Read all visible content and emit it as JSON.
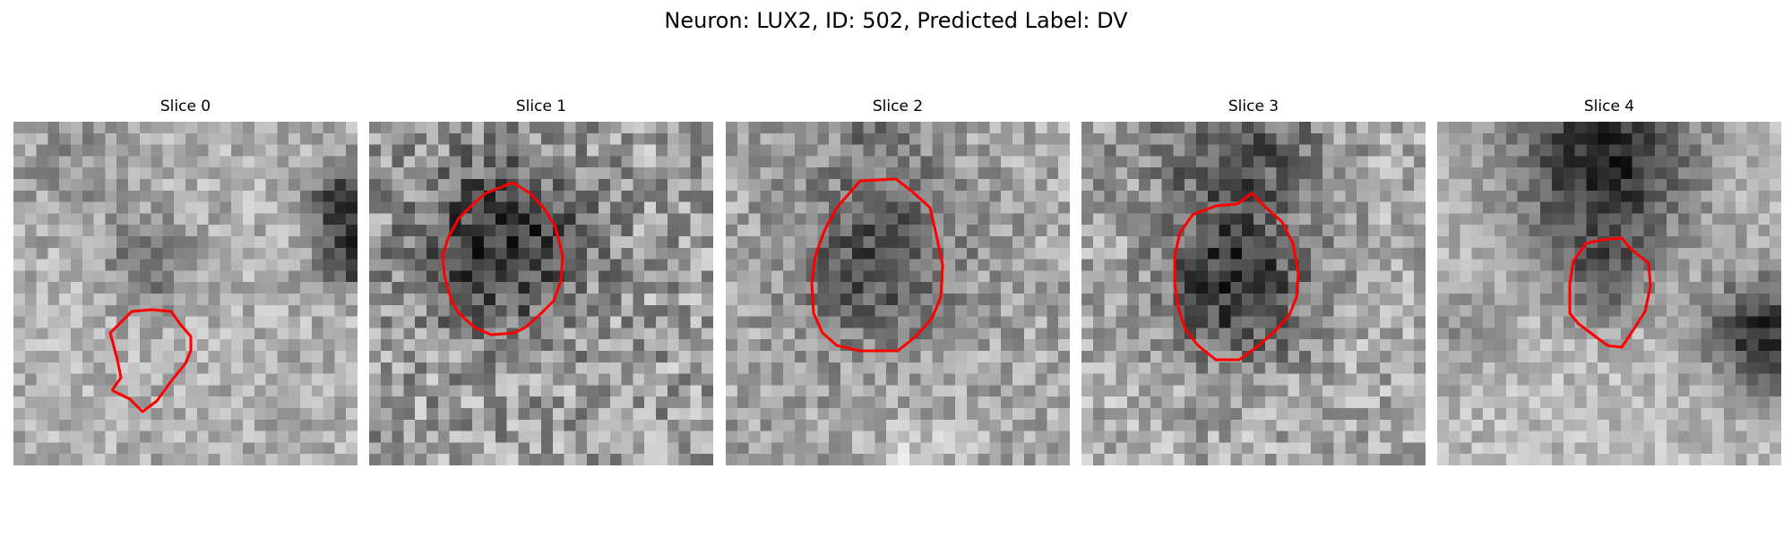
{
  "title": "Neuron: LUX2, ID: 502, Predicted Label: DV",
  "contour_color": "#ff0000",
  "panels": [
    {
      "label": "Slice 0"
    },
    {
      "label": "Slice 1"
    },
    {
      "label": "Slice 2"
    },
    {
      "label": "Slice 3"
    },
    {
      "label": "Slice 4"
    }
  ]
}
